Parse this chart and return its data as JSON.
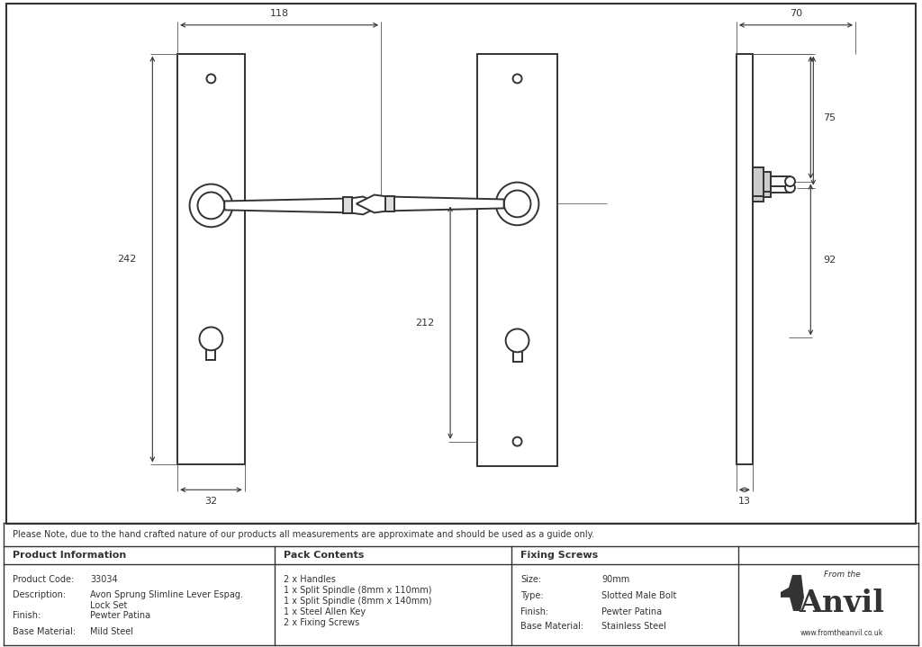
{
  "bg_color": "#ffffff",
  "line_color": "#333333",
  "dim_color": "#333333",
  "fill_color": "#ffffff",
  "note_text": "Please Note, due to the hand crafted nature of our products all measurements are approximate and should be used as a guide only.",
  "product_info": {
    "header": "Product Information",
    "rows": [
      [
        "Product Code:",
        "33034"
      ],
      [
        "Description:",
        "Avon Sprung Slimline Lever Espag.\nLock Set"
      ],
      [
        "Finish:",
        "Pewter Patina"
      ],
      [
        "Base Material:",
        "Mild Steel"
      ]
    ]
  },
  "pack_contents": {
    "header": "Pack Contents",
    "items": [
      "2 x Handles",
      "1 x Split Spindle (8mm x 110mm)",
      "1 x Split Spindle (8mm x 140mm)",
      "1 x Steel Allen Key",
      "2 x Fixing Screws"
    ]
  },
  "fixing_screws": {
    "header": "Fixing Screws",
    "rows": [
      [
        "Size:",
        "90mm"
      ],
      [
        "Type:",
        "Slotted Male Bolt"
      ],
      [
        "Finish:",
        "Pewter Patina"
      ],
      [
        "Base Material:",
        "Stainless Steel"
      ]
    ]
  }
}
